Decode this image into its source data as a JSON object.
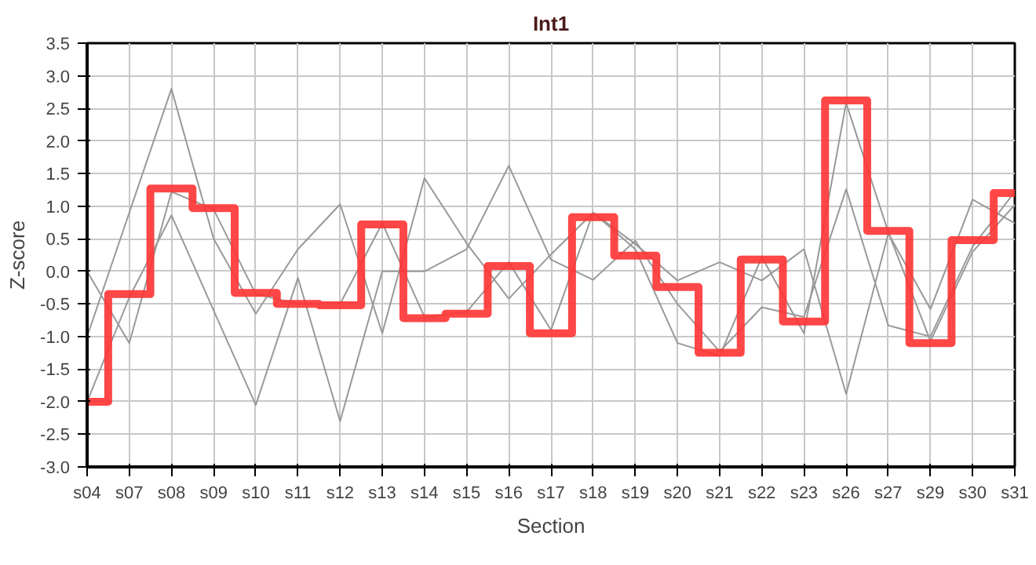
{
  "chart_data": {
    "type": "line",
    "title": "Int1",
    "xlabel": "Section",
    "ylabel": "Z-score",
    "categories": [
      "s04",
      "s07",
      "s08",
      "s09",
      "s10",
      "s11",
      "s12",
      "s13",
      "s14",
      "s15",
      "s16",
      "s17",
      "s18",
      "s19",
      "s20",
      "s21",
      "s22",
      "s23",
      "s26",
      "s27",
      "s29",
      "s30",
      "s31"
    ],
    "ylim": [
      -3.0,
      3.5
    ],
    "yticks": [
      {
        "value": -3,
        "label": "-3.0"
      },
      {
        "value": -2.5,
        "label": "-2.5"
      },
      {
        "value": -2,
        "label": "-2.0"
      },
      {
        "value": -1.5,
        "label": "-1.5"
      },
      {
        "value": -1,
        "label": "-1.0"
      },
      {
        "value": -0.5,
        "label": "-0.5"
      },
      {
        "value": 0,
        "label": "0.0"
      },
      {
        "value": 0.5,
        "label": "0.5"
      },
      {
        "value": 1,
        "label": "1.0"
      },
      {
        "value": 1.5,
        "label": "1.5"
      },
      {
        "value": 2,
        "label": "2.0"
      },
      {
        "value": 2.5,
        "label": "2.5"
      },
      {
        "value": 3,
        "label": "3.0"
      },
      {
        "value": 3.5,
        "label": "3.5"
      }
    ],
    "grid": true,
    "series": [
      {
        "color": "#999999",
        "values": [
          -1.0,
          0.9,
          2.8,
          0.5,
          -0.65,
          0.34,
          1.03,
          -0.95,
          1.43,
          0.43,
          -0.42,
          0.26,
          0.9,
          0.42,
          -0.14,
          0.14,
          -0.14,
          0.34,
          -1.88,
          0.58,
          -0.58,
          1.1,
          0.74
        ]
      },
      {
        "color": "#999999",
        "values": [
          0.0,
          -1.1,
          1.22,
          0.95,
          -0.35,
          -0.5,
          -0.5,
          0.74,
          -0.7,
          -0.62,
          0.14,
          -0.9,
          0.9,
          0.34,
          -1.1,
          -1.3,
          0.22,
          -0.95,
          2.58,
          0.6,
          -1.07,
          0.3,
          1.02
        ]
      },
      {
        "color": "#999999",
        "values": [
          -2.0,
          -0.4,
          0.86,
          -0.6,
          -2.05,
          -0.1,
          -2.3,
          0.0,
          0.0,
          0.34,
          1.62,
          0.18,
          -0.13,
          0.47,
          -0.5,
          -1.23,
          -0.55,
          -0.7,
          1.26,
          -0.83,
          -1.0,
          0.38,
          1.22
        ]
      },
      {
        "type": "step",
        "color": "#ff3333",
        "values": [
          -2.0,
          -0.35,
          1.27,
          0.97,
          -0.33,
          -0.5,
          -0.52,
          0.72,
          -0.72,
          -0.65,
          0.08,
          -0.95,
          0.83,
          0.24,
          -0.24,
          -1.25,
          0.18,
          -0.77,
          2.62,
          0.62,
          -1.1,
          0.48,
          1.2
        ]
      }
    ]
  }
}
